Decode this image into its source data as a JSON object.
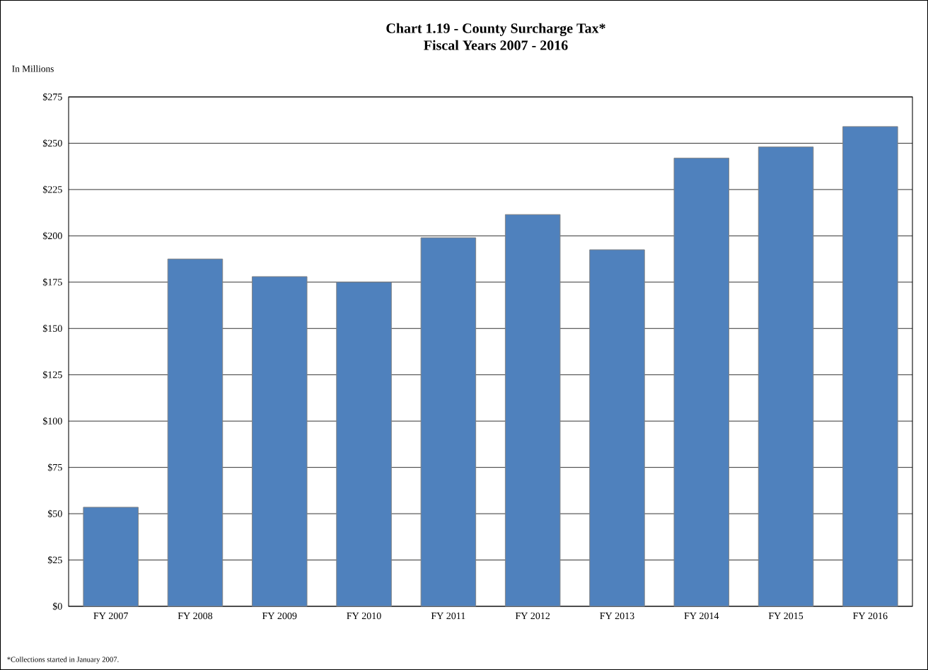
{
  "chart_data": {
    "type": "bar",
    "title": "Chart 1.19 - County Surcharge Tax*",
    "subtitle": "Fiscal Years 2007 - 2016",
    "ylabel": "In Millions",
    "categories": [
      "FY 2007",
      "FY 2008",
      "FY 2009",
      "FY 2010",
      "FY 2011",
      "FY 2012",
      "FY 2013",
      "FY 2014",
      "FY 2015",
      "FY 2016"
    ],
    "values": [
      53.5,
      187.5,
      178,
      175,
      199,
      211.5,
      192.5,
      242,
      248,
      259
    ],
    "color": "#4f81bd",
    "ylim": [
      0,
      275
    ],
    "yticks": [
      {
        "value": 0,
        "label": "$0"
      },
      {
        "value": 25,
        "label": "$25"
      },
      {
        "value": 50,
        "label": "$50"
      },
      {
        "value": 75,
        "label": "$75"
      },
      {
        "value": 100,
        "label": "$100"
      },
      {
        "value": 125,
        "label": "$125"
      },
      {
        "value": 150,
        "label": "$150"
      },
      {
        "value": 175,
        "label": "$175"
      },
      {
        "value": 200,
        "label": "$200"
      },
      {
        "value": 225,
        "label": "$225"
      },
      {
        "value": 250,
        "label": "$250"
      },
      {
        "value": 275,
        "label": "$275"
      }
    ],
    "grid": "y",
    "annotations": [
      "*Collections started in January 2007."
    ]
  }
}
